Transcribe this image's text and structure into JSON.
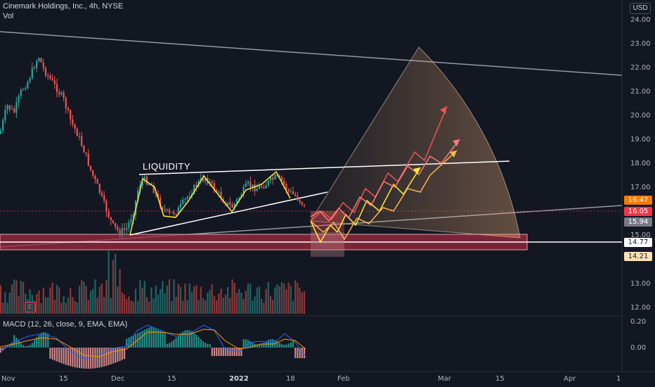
{
  "header": {
    "title": "Cinemark Holdings, Inc., 4h, NYSE",
    "volume_label": "Vol"
  },
  "currency": "USD",
  "annotations": {
    "liquidity": "LIQUIDITY"
  },
  "macd_label": "MACD (12, 26, close, 9, EMA, EMA)",
  "earnings_badge": "E",
  "price_axis": [
    "24.00",
    "23.00",
    "22.00",
    "21.00",
    "20.00",
    "19.00",
    "18.00",
    "17.00",
    "15.00",
    "13.00",
    "12.00"
  ],
  "macd_axis": [
    "0.20",
    "0.00"
  ],
  "time_axis": [
    "Nov",
    "15",
    "Dec",
    "15",
    "2022",
    "18",
    "Feb",
    "Mar",
    "15",
    "Apr",
    "1"
  ],
  "price_labels": [
    {
      "value": "16.47",
      "bg": "#f57c00",
      "fg": "#ffffff"
    },
    {
      "value": "16.05",
      "bg": "#f23645",
      "fg": "#ffffff"
    },
    {
      "value": "15.94",
      "bg": "#787b86",
      "fg": "#ffffff"
    },
    {
      "value": "14.77",
      "bg": "#ffffff",
      "fg": "#131722"
    },
    {
      "value": "14.21",
      "bg": "#ffe0b2",
      "fg": "#131722"
    }
  ],
  "colors": {
    "background": "#131722",
    "up": "#26a69a",
    "down": "#ef5350",
    "zone": "#9c2b3f",
    "fan": "#f5b37a",
    "yellow": "#ffeb3b",
    "grid": "#2a2e39"
  },
  "chart_data": {
    "type": "candlestick",
    "title": "Cinemark Holdings, Inc., 4h, NYSE",
    "ylim": [
      11.5,
      24.3
    ],
    "support_level": 14.77,
    "current_prices": [
      16.47,
      16.05,
      15.94
    ]
  }
}
